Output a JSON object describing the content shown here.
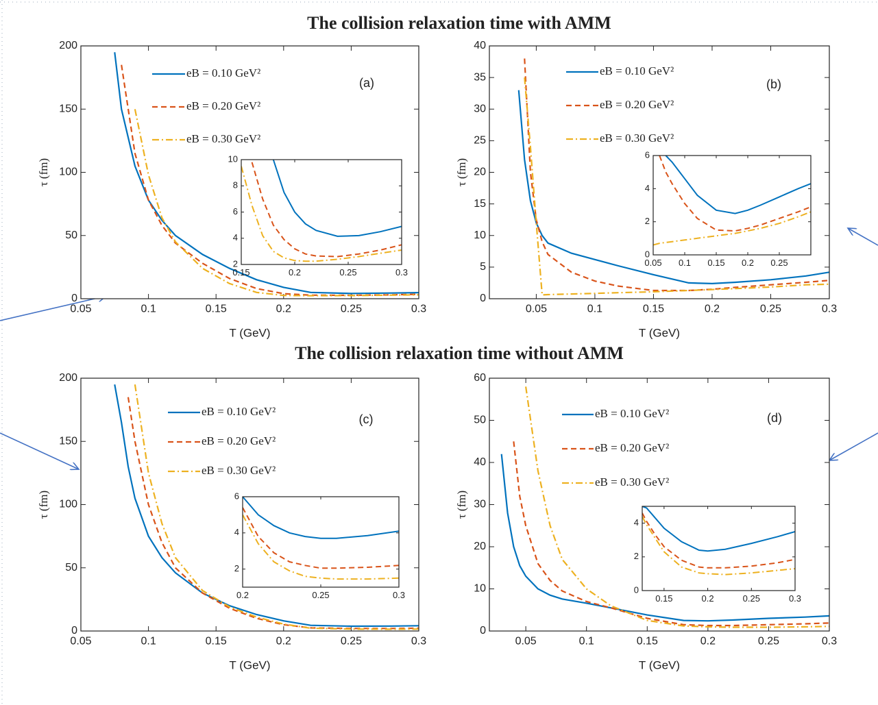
{
  "headings": [
    "The collision relaxation time with AMM",
    "The collision relaxation time without AMM"
  ],
  "chart_data": [
    {
      "type": "line",
      "label": "(a)",
      "x_label": "T (GeV)",
      "y_label": "τ (fm)",
      "xlim": [
        0.05,
        0.3
      ],
      "xticks": [
        0.05,
        0.1,
        0.15,
        0.2,
        0.25,
        0.3
      ],
      "ylim": [
        0,
        200
      ],
      "yticks": [
        0,
        50,
        100,
        150,
        200
      ],
      "x": [
        0.075,
        0.08,
        0.09,
        0.1,
        0.11,
        0.12,
        0.14,
        0.16,
        0.18,
        0.2,
        0.22,
        0.25,
        0.28,
        0.3
      ],
      "series": [
        {
          "name": "eB = 0.10 GeV²",
          "color": "#0072bd",
          "style": "solid",
          "values": [
            195,
            150,
            105,
            78,
            62,
            50,
            35,
            24,
            15,
            9,
            5,
            4.2,
            4.5,
            4.8
          ]
        },
        {
          "name": "eB = 0.20 GeV²",
          "color": "#d95319",
          "style": "dashed",
          "values": [
            null,
            185,
            115,
            78,
            58,
            44,
            28,
            16,
            8,
            4,
            2.8,
            2.7,
            3.1,
            3.5
          ]
        },
        {
          "name": "eB = 0.30 GeV²",
          "color": "#edb120",
          "style": "dashdot",
          "values": [
            null,
            null,
            150,
            98,
            64,
            45,
            24,
            12,
            5,
            2.6,
            2.4,
            2.5,
            2.8,
            3.1
          ]
        }
      ],
      "inset": {
        "xlim": [
          0.15,
          0.3
        ],
        "xticks": [
          0.15,
          0.2,
          0.25,
          0.3
        ],
        "ylim": [
          2,
          10
        ],
        "yticks": [
          2,
          4,
          6,
          8,
          10
        ],
        "x": [
          0.15,
          0.16,
          0.17,
          0.18,
          0.19,
          0.2,
          0.21,
          0.22,
          0.24,
          0.26,
          0.28,
          0.3
        ],
        "series": [
          {
            "values": [
              null,
              null,
              null,
              10,
              7.5,
              6,
              5.1,
              4.6,
              4.15,
              4.2,
              4.5,
              4.9
            ]
          },
          {
            "values": [
              null,
              9.8,
              7,
              5,
              3.9,
              3.2,
              2.8,
              2.65,
              2.6,
              2.8,
              3.1,
              3.5
            ]
          },
          {
            "values": [
              9.5,
              6.5,
              4.2,
              3,
              2.5,
              2.3,
              2.25,
              2.25,
              2.4,
              2.6,
              2.85,
              3.1
            ]
          }
        ]
      }
    },
    {
      "type": "line",
      "label": "(b)",
      "x_label": "T (GeV)",
      "y_label": "τ (fm)",
      "xlim": [
        0.01,
        0.3
      ],
      "xticks": [
        0.05,
        0.1,
        0.15,
        0.2,
        0.25,
        0.3
      ],
      "ylim": [
        0,
        40
      ],
      "yticks": [
        0,
        5,
        10,
        15,
        20,
        25,
        30,
        35,
        40
      ],
      "x": [
        0.03,
        0.035,
        0.04,
        0.045,
        0.05,
        0.055,
        0.06,
        0.08,
        0.1,
        0.12,
        0.15,
        0.18,
        0.2,
        0.22,
        0.25,
        0.28,
        0.3
      ],
      "series": [
        {
          "name": "eB = 0.10 GeV²",
          "color": "#0072bd",
          "style": "solid",
          "values": [
            null,
            33,
            22,
            15.5,
            12,
            10,
            8.8,
            7.2,
            6.2,
            5.2,
            3.8,
            2.5,
            2.4,
            2.6,
            3,
            3.6,
            4.2
          ]
        },
        {
          "name": "eB = 0.20 GeV²",
          "color": "#d95319",
          "style": "dashed",
          "values": [
            null,
            null,
            38,
            20,
            12.5,
            9,
            7,
            4.2,
            2.8,
            2,
            1.3,
            1.3,
            1.5,
            1.8,
            2.2,
            2.6,
            2.9
          ]
        },
        {
          "name": "eB = 0.30 GeV²",
          "color": "#edb120",
          "style": "dashdot",
          "values": [
            null,
            null,
            35,
            24,
            12,
            0.6,
            0.65,
            0.75,
            0.85,
            0.95,
            1.1,
            1.3,
            1.45,
            1.6,
            1.85,
            2.2,
            2.3
          ]
        }
      ],
      "inset": {
        "xlim": [
          0.05,
          0.3
        ],
        "xticks": [
          0.05,
          0.1,
          0.15,
          0.2,
          0.25
        ],
        "ylim": [
          0,
          6
        ],
        "yticks": [
          0,
          2,
          4,
          6
        ],
        "x": [
          0.05,
          0.06,
          0.07,
          0.08,
          0.1,
          0.12,
          0.15,
          0.18,
          0.2,
          0.22,
          0.25,
          0.28,
          0.3
        ],
        "series": [
          {
            "values": [
              null,
              null,
              6,
              5.6,
              4.6,
              3.6,
              2.7,
              2.5,
              2.7,
              3,
              3.5,
              4,
              4.3
            ]
          },
          {
            "values": [
              null,
              6,
              5,
              4.3,
              3.1,
              2.2,
              1.5,
              1.45,
              1.6,
              1.8,
              2.2,
              2.6,
              2.9
            ]
          },
          {
            "values": [
              0.6,
              0.7,
              0.75,
              0.8,
              0.9,
              1,
              1.15,
              1.3,
              1.45,
              1.6,
              1.9,
              2.3,
              2.6
            ]
          }
        ]
      }
    },
    {
      "type": "line",
      "label": "(c)",
      "x_label": "T (GeV)",
      "y_label": "τ (fm)",
      "xlim": [
        0.05,
        0.3
      ],
      "xticks": [
        0.05,
        0.1,
        0.15,
        0.2,
        0.25,
        0.3
      ],
      "ylim": [
        0,
        200
      ],
      "yticks": [
        0,
        50,
        100,
        150,
        200
      ],
      "x": [
        0.075,
        0.08,
        0.085,
        0.09,
        0.1,
        0.11,
        0.12,
        0.14,
        0.16,
        0.18,
        0.2,
        0.22,
        0.25,
        0.28,
        0.3
      ],
      "series": [
        {
          "name": "eB = 0.10 GeV²",
          "color": "#0072bd",
          "style": "solid",
          "values": [
            195,
            165,
            130,
            105,
            75,
            58,
            46,
            30,
            20,
            13,
            8,
            4.5,
            3.8,
            3.9,
            4.2
          ]
        },
        {
          "name": "eB = 0.20 GeV²",
          "color": "#d95319",
          "style": "dashed",
          "values": [
            null,
            null,
            185,
            150,
            100,
            70,
            50,
            30,
            18,
            10,
            5,
            2.5,
            2,
            2,
            2.2
          ]
        },
        {
          "name": "eB = 0.30 GeV²",
          "color": "#edb120",
          "style": "dashdot",
          "values": [
            null,
            null,
            null,
            195,
            125,
            85,
            58,
            32,
            19,
            11,
            5.5,
            2.2,
            1.5,
            1.4,
            1.5
          ]
        }
      ],
      "inset": {
        "xlim": [
          0.2,
          0.3
        ],
        "xticks": [
          0.2,
          0.25,
          0.3
        ],
        "ylim": [
          1,
          6
        ],
        "yticks": [
          2,
          4,
          6
        ],
        "x": [
          0.2,
          0.21,
          0.22,
          0.23,
          0.24,
          0.25,
          0.26,
          0.28,
          0.3
        ],
        "series": [
          {
            "values": [
              6,
              5,
              4.4,
              4,
              3.8,
              3.7,
              3.7,
              3.85,
              4.1
            ]
          },
          {
            "values": [
              5.4,
              3.8,
              2.9,
              2.4,
              2.2,
              2.05,
              2.05,
              2.1,
              2.2
            ]
          },
          {
            "values": [
              5,
              3.4,
              2.4,
              1.9,
              1.6,
              1.5,
              1.45,
              1.45,
              1.5
            ]
          }
        ]
      }
    },
    {
      "type": "line",
      "label": "(d)",
      "x_label": "T (GeV)",
      "y_label": "τ (fm)",
      "xlim": [
        0.02,
        0.3
      ],
      "xticks": [
        0.05,
        0.1,
        0.15,
        0.2,
        0.25,
        0.3
      ],
      "ylim": [
        0,
        60
      ],
      "yticks": [
        0,
        10,
        20,
        30,
        40,
        50,
        60
      ],
      "x": [
        0.025,
        0.03,
        0.035,
        0.04,
        0.045,
        0.05,
        0.06,
        0.07,
        0.08,
        0.1,
        0.12,
        0.15,
        0.18,
        0.2,
        0.22,
        0.25,
        0.28,
        0.3
      ],
      "series": [
        {
          "name": "eB = 0.10 GeV²",
          "color": "#0072bd",
          "style": "solid",
          "values": [
            null,
            42,
            28,
            20,
            15.5,
            13,
            10,
            8.5,
            7.6,
            6.6,
            5.5,
            3.8,
            2.5,
            2.4,
            2.6,
            3,
            3.3,
            3.6
          ]
        },
        {
          "name": "eB = 0.20 GeV²",
          "color": "#d95319",
          "style": "dashed",
          "values": [
            null,
            null,
            null,
            45,
            32,
            25,
            16,
            12,
            9.5,
            7,
            5.5,
            3,
            1.5,
            1.3,
            1.3,
            1.5,
            1.7,
            1.9
          ]
        },
        {
          "name": "eB = 0.30 GeV²",
          "color": "#edb120",
          "style": "dashdot",
          "values": [
            null,
            null,
            null,
            null,
            null,
            58,
            38,
            25,
            17,
            10,
            6,
            2.5,
            1.2,
            1,
            0.9,
            0.9,
            1,
            1.1
          ]
        }
      ],
      "inset": {
        "xlim": [
          0.125,
          0.3
        ],
        "xticks": [
          0.15,
          0.2,
          0.25,
          0.3
        ],
        "ylim": [
          0,
          5
        ],
        "yticks": [
          0,
          2,
          4
        ],
        "x": [
          0.125,
          0.13,
          0.14,
          0.15,
          0.17,
          0.19,
          0.2,
          0.22,
          0.25,
          0.28,
          0.3
        ],
        "series": [
          {
            "values": [
              5,
              4.9,
              4.3,
              3.7,
              2.9,
              2.4,
              2.35,
              2.45,
              2.8,
              3.2,
              3.5
            ]
          },
          {
            "values": [
              4.6,
              4.1,
              3.3,
              2.6,
              1.8,
              1.4,
              1.35,
              1.35,
              1.45,
              1.65,
              1.85
            ]
          },
          {
            "values": [
              4.4,
              3.9,
              3.1,
              2.3,
              1.4,
              1.05,
              1,
              0.95,
              1.05,
              1.2,
              1.3
            ]
          }
        ]
      }
    }
  ]
}
